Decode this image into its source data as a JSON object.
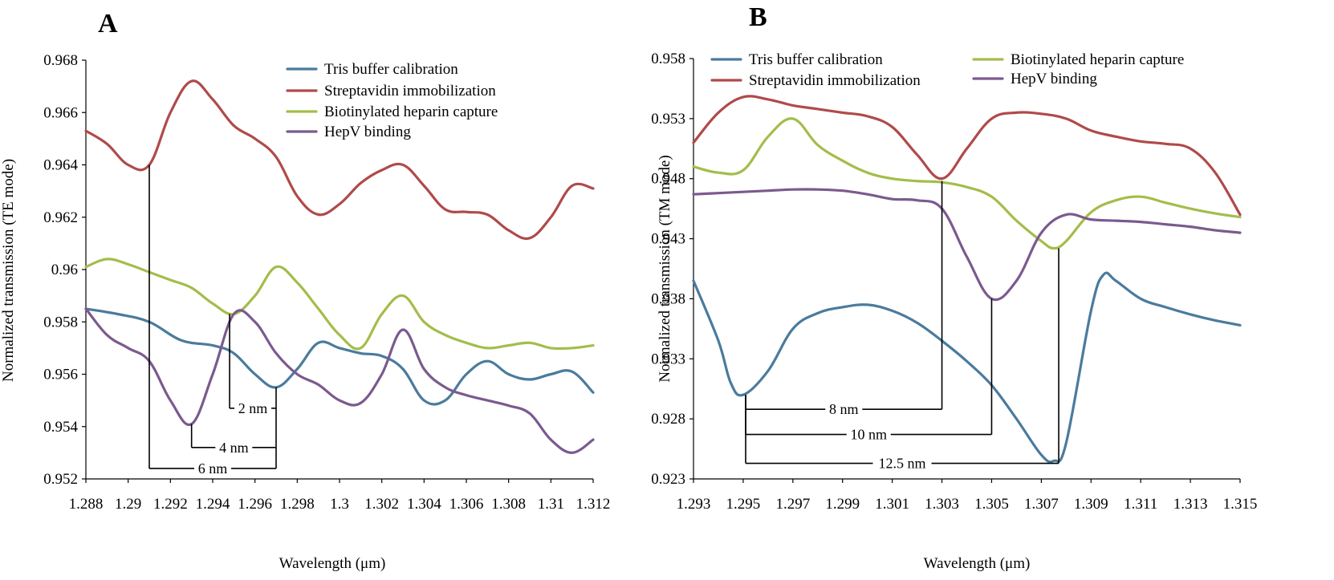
{
  "colors": {
    "tris": "#4a7b9d",
    "strep": "#b04a4a",
    "biotin": "#a3bd4a",
    "hepv": "#7b5a8e"
  },
  "chart_data": [
    {
      "type": "line",
      "panel_label": "A",
      "xlabel": "Wavelength (μm)",
      "ylabel": "Normalized transmission (TE mode)",
      "xlim": [
        1.288,
        1.312
      ],
      "ylim": [
        0.952,
        0.968
      ],
      "xticks": [
        "1.288",
        "1.29",
        "1.292",
        "1.294",
        "1.296",
        "1.298",
        "1.3",
        "1.302",
        "1.304",
        "1.306",
        "1.308",
        "1.31",
        "1.312"
      ],
      "yticks": [
        "0.952",
        "0.954",
        "0.956",
        "0.958",
        "0.96",
        "0.962",
        "0.964",
        "0.966",
        "0.968"
      ],
      "legend": [
        "Tris buffer calibration",
        "Streptavidin immobilization",
        "Biotinylated heparin capture",
        "HepV binding"
      ],
      "series": [
        {
          "name": "Tris buffer calibration",
          "color_key": "tris",
          "x": [
            1.288,
            1.2895,
            1.291,
            1.2925,
            1.294,
            1.295,
            1.296,
            1.297,
            1.298,
            1.299,
            1.3,
            1.301,
            1.302,
            1.303,
            1.304,
            1.305,
            1.306,
            1.307,
            1.308,
            1.309,
            1.31,
            1.311,
            1.312
          ],
          "y": [
            0.9585,
            0.9583,
            0.958,
            0.9573,
            0.9571,
            0.9568,
            0.956,
            0.9555,
            0.9562,
            0.9572,
            0.957,
            0.9568,
            0.9567,
            0.9562,
            0.955,
            0.955,
            0.956,
            0.9565,
            0.956,
            0.9558,
            0.956,
            0.9561,
            0.9553
          ]
        },
        {
          "name": "Streptavidin immobilization",
          "color_key": "strep",
          "x": [
            1.288,
            1.289,
            1.29,
            1.291,
            1.292,
            1.293,
            1.294,
            1.295,
            1.296,
            1.297,
            1.298,
            1.299,
            1.3,
            1.301,
            1.302,
            1.303,
            1.304,
            1.305,
            1.306,
            1.307,
            1.308,
            1.309,
            1.31,
            1.311,
            1.312
          ],
          "y": [
            0.9653,
            0.9648,
            0.964,
            0.964,
            0.966,
            0.9672,
            0.9665,
            0.9655,
            0.965,
            0.9643,
            0.9628,
            0.9621,
            0.9625,
            0.9633,
            0.9638,
            0.964,
            0.9632,
            0.9623,
            0.9622,
            0.9621,
            0.9615,
            0.9612,
            0.962,
            0.9632,
            0.9631
          ]
        },
        {
          "name": "Biotinylated heparin capture",
          "color_key": "biotin",
          "x": [
            1.288,
            1.289,
            1.29,
            1.291,
            1.292,
            1.293,
            1.294,
            1.295,
            1.296,
            1.297,
            1.298,
            1.299,
            1.3,
            1.301,
            1.302,
            1.303,
            1.304,
            1.305,
            1.306,
            1.307,
            1.308,
            1.309,
            1.31,
            1.311,
            1.312
          ],
          "y": [
            0.9601,
            0.9604,
            0.9602,
            0.9599,
            0.9596,
            0.9593,
            0.9587,
            0.9583,
            0.959,
            0.9601,
            0.9595,
            0.9585,
            0.9575,
            0.957,
            0.9583,
            0.959,
            0.958,
            0.9575,
            0.9572,
            0.957,
            0.9571,
            0.9572,
            0.957,
            0.957,
            0.9571
          ]
        },
        {
          "name": "HepV binding",
          "color_key": "hepv",
          "x": [
            1.288,
            1.289,
            1.29,
            1.291,
            1.292,
            1.293,
            1.294,
            1.295,
            1.296,
            1.297,
            1.298,
            1.299,
            1.3,
            1.301,
            1.302,
            1.303,
            1.304,
            1.305,
            1.306,
            1.307,
            1.308,
            1.309,
            1.31,
            1.311,
            1.312
          ],
          "y": [
            0.9585,
            0.9575,
            0.957,
            0.9565,
            0.955,
            0.9541,
            0.956,
            0.9583,
            0.958,
            0.9568,
            0.956,
            0.9556,
            0.955,
            0.9549,
            0.956,
            0.9577,
            0.9562,
            0.9555,
            0.9552,
            0.955,
            0.9548,
            0.9545,
            0.9535,
            0.953,
            0.9535
          ]
        }
      ],
      "annotations": [
        {
          "label": "2 nm",
          "x1": 1.2948,
          "x2": 1.297,
          "y": 0.9547,
          "x1_from_y": 0.9583,
          "x2_from_y": 0.9555
        },
        {
          "label": "4 nm",
          "x1": 1.293,
          "x2": 1.297,
          "y": 0.9532,
          "x1_from_y": 0.9541,
          "x2_from_y": 0.9547
        },
        {
          "label": "6 nm",
          "x1": 1.291,
          "x2": 1.297,
          "y": 0.9524,
          "x1_from_y": 0.964,
          "x2_from_y": 0.9532
        }
      ]
    },
    {
      "type": "line",
      "panel_label": "B",
      "xlabel": "Wavelength (μm)",
      "ylabel": "Normalized transmission (TM mode)",
      "xlim": [
        1.293,
        1.315
      ],
      "ylim": [
        0.923,
        0.958
      ],
      "xticks": [
        "1.293",
        "1.295",
        "1.297",
        "1.299",
        "1.301",
        "1.303",
        "1.305",
        "1.307",
        "1.309",
        "1.311",
        "1.313",
        "1.315"
      ],
      "yticks": [
        "0.923",
        "0.928",
        "0.933",
        "0.938",
        "0.943",
        "0.948",
        "0.953",
        "0.958"
      ],
      "legend": [
        "Tris buffer calibration",
        "Streptavidin immobilization",
        "Biotinylated heparin capture",
        "HepV binding"
      ],
      "series": [
        {
          "name": "Tris buffer calibration",
          "color_key": "tris",
          "x": [
            1.293,
            1.294,
            1.2945,
            1.295,
            1.296,
            1.297,
            1.298,
            1.299,
            1.3,
            1.301,
            1.302,
            1.303,
            1.304,
            1.305,
            1.306,
            1.307,
            1.3075,
            1.308,
            1.309,
            1.3095,
            1.31,
            1.311,
            1.312,
            1.313,
            1.314,
            1.315
          ],
          "y": [
            0.9395,
            0.9345,
            0.931,
            0.93,
            0.932,
            0.9355,
            0.9368,
            0.9373,
            0.9375,
            0.937,
            0.936,
            0.9345,
            0.9328,
            0.9308,
            0.928,
            0.925,
            0.9245,
            0.926,
            0.937,
            0.94,
            0.9395,
            0.938,
            0.9373,
            0.9367,
            0.9362,
            0.9358
          ]
        },
        {
          "name": "Streptavidin immobilization",
          "color_key": "strep",
          "x": [
            1.293,
            1.294,
            1.295,
            1.296,
            1.297,
            1.298,
            1.299,
            1.3,
            1.301,
            1.302,
            1.303,
            1.304,
            1.305,
            1.306,
            1.307,
            1.308,
            1.309,
            1.31,
            1.311,
            1.312,
            1.313,
            1.314,
            1.315
          ],
          "y": [
            0.951,
            0.9535,
            0.9548,
            0.9546,
            0.9541,
            0.9538,
            0.9535,
            0.9532,
            0.9523,
            0.95,
            0.948,
            0.9505,
            0.953,
            0.9535,
            0.9534,
            0.953,
            0.952,
            0.9515,
            0.9511,
            0.9509,
            0.9505,
            0.9485,
            0.945
          ]
        },
        {
          "name": "Biotinylated heparin capture",
          "color_key": "biotin",
          "x": [
            1.293,
            1.294,
            1.295,
            1.296,
            1.297,
            1.298,
            1.299,
            1.3,
            1.301,
            1.302,
            1.303,
            1.304,
            1.305,
            1.306,
            1.307,
            1.3075,
            1.308,
            1.309,
            1.31,
            1.311,
            1.312,
            1.313,
            1.314,
            1.315
          ],
          "y": [
            0.949,
            0.9485,
            0.9487,
            0.9515,
            0.953,
            0.9508,
            0.9495,
            0.9485,
            0.948,
            0.9478,
            0.9477,
            0.9473,
            0.9465,
            0.9445,
            0.9428,
            0.9422,
            0.9428,
            0.9452,
            0.9462,
            0.9465,
            0.946,
            0.9455,
            0.9451,
            0.9448
          ]
        },
        {
          "name": "HepV binding",
          "color_key": "hepv",
          "x": [
            1.293,
            1.294,
            1.295,
            1.296,
            1.297,
            1.298,
            1.299,
            1.3,
            1.301,
            1.302,
            1.303,
            1.304,
            1.305,
            1.306,
            1.307,
            1.308,
            1.309,
            1.31,
            1.311,
            1.312,
            1.313,
            1.314,
            1.315
          ],
          "y": [
            0.9467,
            0.9468,
            0.9469,
            0.947,
            0.9471,
            0.9471,
            0.947,
            0.9467,
            0.9463,
            0.9462,
            0.9455,
            0.9415,
            0.938,
            0.9395,
            0.9435,
            0.945,
            0.9446,
            0.9445,
            0.9444,
            0.9442,
            0.944,
            0.9437,
            0.9435
          ]
        }
      ],
      "annotations": [
        {
          "label": "8 nm",
          "x1": 1.2951,
          "x2": 1.303,
          "y": 0.9288,
          "x1_from_y": 0.93,
          "x2_from_y": 0.9478
        },
        {
          "label": "10 nm",
          "x1": 1.2951,
          "x2": 1.305,
          "y": 0.9267,
          "x1_from_y": 0.93,
          "x2_from_y": 0.938
        },
        {
          "label": "12.5 nm",
          "x1": 1.2951,
          "x2": 1.3077,
          "y": 0.9243,
          "x1_from_y": 0.93,
          "x2_from_y": 0.9422
        }
      ]
    }
  ]
}
